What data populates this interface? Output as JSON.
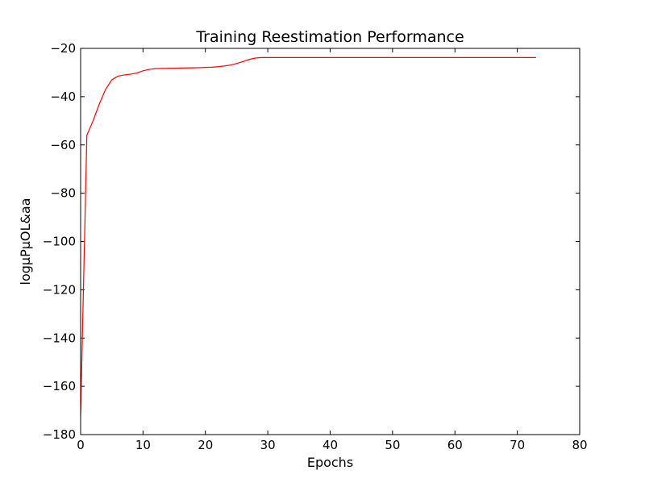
{
  "chart_data": {
    "type": "line",
    "title": "Training Reestimation Performance",
    "xlabel": "Epochs",
    "ylabel": "logµPµOL&aa",
    "xlim": [
      0,
      80
    ],
    "ylim": [
      -180,
      -20
    ],
    "xticks": [
      0,
      10,
      20,
      30,
      40,
      50,
      60,
      70,
      80
    ],
    "yticks": [
      -180,
      -160,
      -140,
      -120,
      -100,
      -80,
      -60,
      -40,
      -20
    ],
    "xtick_labels": [
      "0",
      "10",
      "20",
      "30",
      "40",
      "50",
      "60",
      "70",
      "80"
    ],
    "ytick_labels": [
      "−180",
      "−160",
      "−140",
      "−120",
      "−100",
      "−80",
      "−60",
      "−40",
      "−20"
    ],
    "grid": false,
    "series": [
      {
        "color": "#ff0000",
        "x": [
          0,
          1,
          2,
          3,
          4,
          5,
          6,
          7,
          8,
          9,
          10,
          11,
          12,
          13,
          14,
          15,
          16,
          17,
          18,
          19,
          20,
          21,
          22,
          23,
          24,
          25,
          26,
          27,
          28,
          29,
          30,
          35,
          40,
          45,
          50,
          55,
          60,
          65,
          70,
          73
        ],
        "y": [
          -172,
          -56,
          -50,
          -43,
          -37,
          -33,
          -31.5,
          -31,
          -30.7,
          -30.2,
          -29.3,
          -28.7,
          -28.4,
          -28.3,
          -28.25,
          -28.2,
          -28.15,
          -28.1,
          -28.05,
          -28,
          -27.9,
          -27.8,
          -27.6,
          -27.3,
          -26.9,
          -26.3,
          -25.5,
          -24.6,
          -24,
          -23.8,
          -23.8,
          -23.8,
          -23.8,
          -23.8,
          -23.8,
          -23.8,
          -23.8,
          -23.8,
          -23.8,
          -23.8
        ]
      }
    ]
  }
}
